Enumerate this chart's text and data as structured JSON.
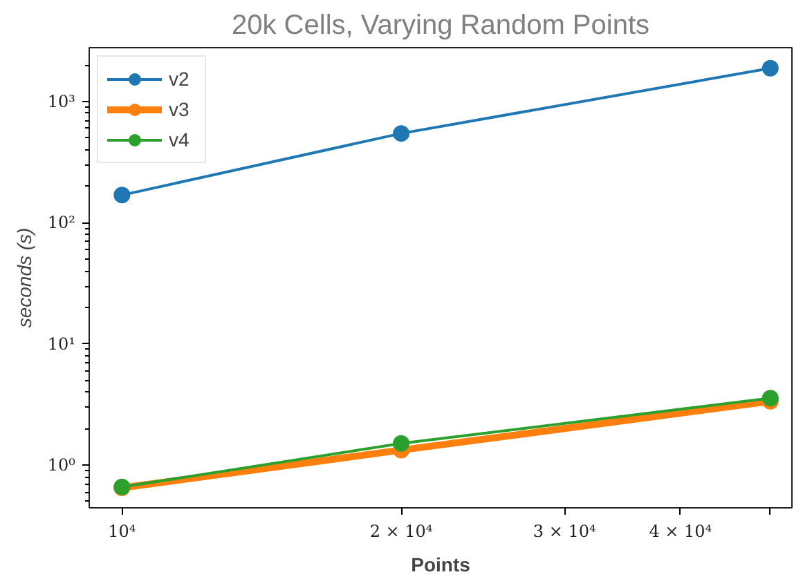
{
  "chart_data": {
    "type": "line",
    "title": "20k Cells, Varying Random Points",
    "xlabel": "Points",
    "ylabel": "seconds (s)",
    "log": "xy",
    "x": [
      10000,
      20000,
      50000
    ],
    "series": [
      {
        "name": "v2",
        "color": "#1f77b4",
        "values": [
          169,
          545,
          1880
        ]
      },
      {
        "name": "v3",
        "color": "#ff7f0e",
        "values": [
          0.65,
          1.33,
          3.36
        ]
      },
      {
        "name": "v4",
        "color": "#2ca02c",
        "values": [
          0.66,
          1.51,
          3.57
        ]
      }
    ],
    "xlim": [
      9220,
      52750
    ],
    "ylim": [
      0.444,
      2780
    ],
    "xticks": [
      {
        "value": 10000,
        "label": "10⁴"
      },
      {
        "value": 20000,
        "label": "2 × 10⁴"
      },
      {
        "value": 30000,
        "label": "3 × 10⁴"
      },
      {
        "value": 40000,
        "label": "4 × 10⁴"
      },
      {
        "value": 50000,
        "label": null
      }
    ],
    "yticks": [
      {
        "value": 1,
        "label": "10⁰"
      },
      {
        "value": 10,
        "label": "10¹"
      },
      {
        "value": 100,
        "label": "10²"
      },
      {
        "value": 1000,
        "label": "10³"
      }
    ],
    "grid": false,
    "legend": "top left",
    "marker": "circle",
    "line_style": "solid"
  }
}
